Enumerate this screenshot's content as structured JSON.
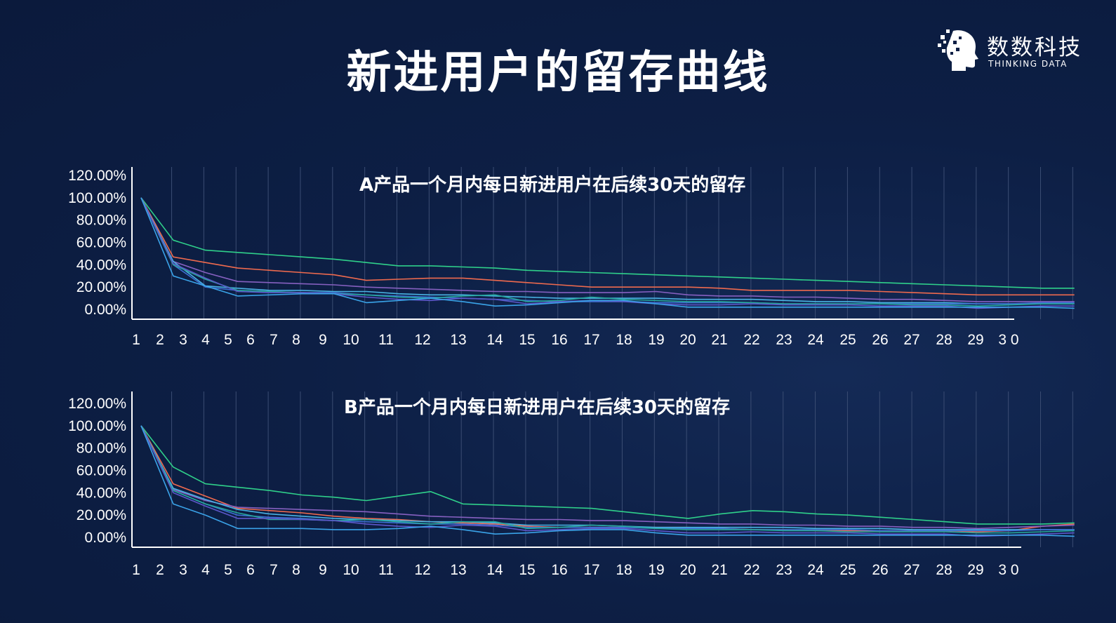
{
  "page": {
    "title": "新进用户的留存曲线"
  },
  "logo": {
    "name": "数数科技",
    "sub": "THINKING DATA"
  },
  "colors": {
    "background": "#0d1f45",
    "axis": "#ffffff",
    "grid": "#3b4d73"
  },
  "chart_data": [
    {
      "type": "line",
      "title": "A产品一个月内每日新进用户在后续30天的留存",
      "x": [
        1,
        2,
        3,
        4,
        5,
        6,
        7,
        8,
        9,
        10,
        11,
        12,
        13,
        14,
        15,
        16,
        17,
        18,
        19,
        20,
        21,
        22,
        23,
        24,
        25,
        26,
        27,
        28,
        29,
        30
      ],
      "x_tick_labels": [
        "1",
        "2",
        "3",
        "4",
        "5",
        "6",
        "7",
        "8",
        "9",
        "10",
        "11",
        "12",
        "13",
        "14",
        "15",
        "16",
        "17",
        "18",
        "19",
        "20",
        "21",
        "22",
        "23",
        "24",
        "25",
        "26",
        "27",
        "28",
        "29",
        "3 0"
      ],
      "y_tick_labels": [
        "120.00%",
        "100.00%",
        "80.00%",
        "60.00%",
        "40.00%",
        "20.00%",
        "0.00%"
      ],
      "ylim": [
        0,
        120
      ],
      "grid": "vertical",
      "series": [
        {
          "color": "#2fd08a",
          "values": [
            100,
            62,
            53,
            51,
            49,
            47,
            45,
            42,
            39,
            39,
            38,
            37,
            35,
            34,
            33,
            32,
            31,
            30,
            29,
            28,
            27,
            26,
            25,
            24,
            23,
            22,
            21,
            20,
            19,
            19
          ]
        },
        {
          "color": "#ef6a4e",
          "values": [
            100,
            47,
            42,
            37,
            35,
            33,
            31,
            26,
            27,
            28,
            28,
            26,
            24,
            22,
            20,
            20,
            20,
            20,
            19,
            17,
            17,
            17,
            17,
            16,
            15,
            14,
            13,
            13,
            13,
            13
          ]
        },
        {
          "color": "#8660c0",
          "values": [
            100,
            43,
            33,
            25,
            24,
            23,
            22,
            20,
            19,
            18,
            17,
            16,
            16,
            15,
            15,
            15,
            16,
            13,
            12,
            12,
            11,
            11,
            10,
            9,
            9,
            8,
            7,
            7,
            7,
            7
          ]
        },
        {
          "color": "#49b2e3",
          "values": [
            100,
            43,
            21,
            19,
            17,
            17,
            16,
            16,
            14,
            13,
            13,
            12,
            11,
            10,
            10,
            10,
            10,
            9,
            9,
            9,
            8,
            7,
            7,
            6,
            6,
            6,
            5,
            5,
            5,
            5
          ]
        },
        {
          "color": "#3d6fd2",
          "values": [
            100,
            40,
            20,
            17,
            16,
            15,
            15,
            13,
            12,
            11,
            10,
            9,
            8,
            7,
            7,
            7,
            6,
            6,
            6,
            6,
            5,
            5,
            5,
            5,
            5,
            5,
            5,
            5,
            6,
            6
          ]
        },
        {
          "color": "#27a79c",
          "values": [
            100,
            40,
            27,
            17,
            16,
            15,
            14,
            13,
            11,
            10,
            12,
            13,
            7,
            8,
            11,
            9,
            8,
            7,
            7,
            6,
            5,
            5,
            5,
            5,
            4,
            4,
            3,
            4,
            5,
            5
          ]
        },
        {
          "color": "#5c57c9",
          "values": [
            100,
            41,
            28,
            16,
            15,
            15,
            14,
            11,
            9,
            8,
            10,
            9,
            5,
            7,
            8,
            7,
            5,
            4,
            4,
            5,
            4,
            4,
            4,
            3,
            3,
            3,
            1,
            2,
            3,
            3
          ]
        },
        {
          "color": "#3aa3e8",
          "values": [
            100,
            30,
            21,
            12,
            13,
            14,
            14,
            6,
            8,
            10,
            7,
            3,
            4,
            6,
            8,
            8,
            5,
            2,
            2,
            2,
            2,
            2,
            2,
            2,
            2,
            2,
            2,
            2,
            2,
            1
          ]
        }
      ]
    },
    {
      "type": "line",
      "title": "B产品一个月内每日新进用户在后续30天的留存",
      "x": [
        1,
        2,
        3,
        4,
        5,
        6,
        7,
        8,
        9,
        10,
        11,
        12,
        13,
        14,
        15,
        16,
        17,
        18,
        19,
        20,
        21,
        22,
        23,
        24,
        25,
        26,
        27,
        28,
        29,
        30
      ],
      "x_tick_labels": [
        "1",
        "2",
        "3",
        "4",
        "5",
        "6",
        "7",
        "8",
        "9",
        "10",
        "11",
        "12",
        "13",
        "14",
        "15",
        "16",
        "17",
        "18",
        "19",
        "20",
        "21",
        "22",
        "23",
        "24",
        "25",
        "26",
        "27",
        "28",
        "29",
        "3 0"
      ],
      "y_tick_labels": [
        "120.00%",
        "100.00%",
        "80.00%",
        "60.00%",
        "40.00%",
        "20.00%",
        "0.00%"
      ],
      "ylim": [
        0,
        120
      ],
      "grid": "vertical",
      "series": [
        {
          "color": "#2fd08a",
          "values": [
            100,
            63,
            48,
            45,
            42,
            38,
            36,
            33,
            37,
            41,
            30,
            29,
            28,
            27,
            26,
            23,
            20,
            17,
            21,
            24,
            23,
            21,
            20,
            18,
            16,
            14,
            12,
            12,
            12,
            13
          ]
        },
        {
          "color": "#ef6a4e",
          "values": [
            100,
            48,
            37,
            26,
            24,
            22,
            19,
            17,
            16,
            14,
            13,
            12,
            10,
            9,
            9,
            9,
            9,
            9,
            8,
            7,
            7,
            6,
            6,
            6,
            6,
            6,
            5,
            6,
            10,
            12
          ]
        },
        {
          "color": "#8660c0",
          "values": [
            100,
            43,
            33,
            27,
            26,
            25,
            24,
            23,
            21,
            19,
            18,
            17,
            16,
            16,
            15,
            15,
            14,
            13,
            12,
            12,
            11,
            11,
            10,
            10,
            9,
            9,
            8,
            9,
            10,
            11
          ]
        },
        {
          "color": "#49b2e3",
          "values": [
            100,
            44,
            34,
            25,
            21,
            19,
            17,
            16,
            15,
            14,
            14,
            13,
            11,
            11,
            11,
            10,
            9,
            9,
            9,
            9,
            9,
            8,
            8,
            8,
            7,
            7,
            7,
            7,
            7,
            7
          ]
        },
        {
          "color": "#3d6fd2",
          "values": [
            100,
            42,
            30,
            20,
            18,
            17,
            15,
            14,
            13,
            12,
            12,
            11,
            9,
            9,
            9,
            9,
            8,
            8,
            8,
            7,
            7,
            7,
            7,
            6,
            6,
            6,
            6,
            6,
            7,
            7
          ]
        },
        {
          "color": "#27a79c",
          "values": [
            100,
            42,
            30,
            22,
            16,
            16,
            15,
            16,
            14,
            12,
            14,
            14,
            8,
            9,
            11,
            10,
            8,
            7,
            7,
            7,
            6,
            6,
            5,
            5,
            5,
            5,
            4,
            4,
            5,
            6
          ]
        },
        {
          "color": "#5c57c9",
          "values": [
            100,
            40,
            28,
            17,
            17,
            16,
            15,
            12,
            10,
            9,
            11,
            10,
            6,
            7,
            8,
            8,
            6,
            4,
            4,
            5,
            4,
            4,
            4,
            3,
            3,
            3,
            1,
            2,
            3,
            4
          ]
        },
        {
          "color": "#3aa3e8",
          "values": [
            100,
            30,
            20,
            8,
            8,
            8,
            7,
            7,
            8,
            10,
            7,
            3,
            4,
            6,
            7,
            7,
            4,
            2,
            2,
            2,
            2,
            2,
            2,
            2,
            2,
            2,
            2,
            2,
            2,
            1
          ]
        }
      ]
    }
  ]
}
